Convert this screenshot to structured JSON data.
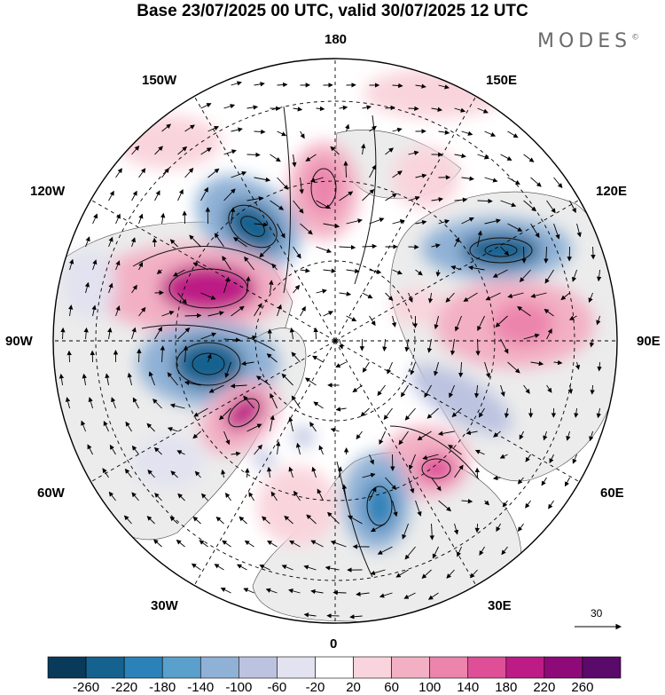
{
  "title": "Base 23/07/2025 00 UTC, valid 30/07/2025 12 UTC",
  "brand": "MODES",
  "brand_mark": "©",
  "longitude_labels": {
    "lon_180": "180",
    "lon_150w": "150W",
    "lon_150e": "150E",
    "lon_120w": "120W",
    "lon_120e": "120E",
    "lon_90w": "90W",
    "lon_90e": "90E",
    "lon_60w": "60W",
    "lon_60e": "60E",
    "lon_30w": "30W",
    "lon_30e": "30E",
    "lon_0": "0"
  },
  "reference_vector": {
    "value": "30"
  },
  "colorbar": {
    "ticks": [
      "-260",
      "-220",
      "-180",
      "-140",
      "-100",
      "-60",
      "-20",
      "20",
      "60",
      "100",
      "140",
      "180",
      "220",
      "260"
    ],
    "colors": [
      "#0a3a5a",
      "#16628f",
      "#2a82b8",
      "#5aa0cc",
      "#8fb1d6",
      "#bcc3e0",
      "#e2e2f0",
      "#ffffff",
      "#f9d4dc",
      "#f3b0c4",
      "#ec84ac",
      "#de4f98",
      "#bd1c86",
      "#8f0a79",
      "#5a0a6a"
    ]
  },
  "map_data": {
    "type": "polar-stereographic",
    "projection_center": "North Pole",
    "field": "geopotential height anomaly",
    "meridian_step_deg": 30,
    "anomaly_centers": [
      {
        "sign": "negative",
        "lon_label": "150W",
        "strength": -220
      },
      {
        "sign": "negative",
        "lon_label": "120E",
        "strength": -220
      },
      {
        "sign": "positive",
        "lon_label": "120W",
        "strength": 220
      },
      {
        "sign": "positive",
        "lon_label": "90E",
        "strength": 140
      },
      {
        "sign": "negative",
        "lon_label": "90W",
        "strength": -220
      },
      {
        "sign": "positive",
        "lon_label": "60W",
        "strength": 220
      },
      {
        "sign": "positive",
        "lon_label": "60E",
        "strength": 180
      },
      {
        "sign": "negative",
        "lon_label": "30E",
        "strength": -220
      },
      {
        "sign": "positive",
        "lon_label": "180",
        "strength": 100
      }
    ]
  }
}
